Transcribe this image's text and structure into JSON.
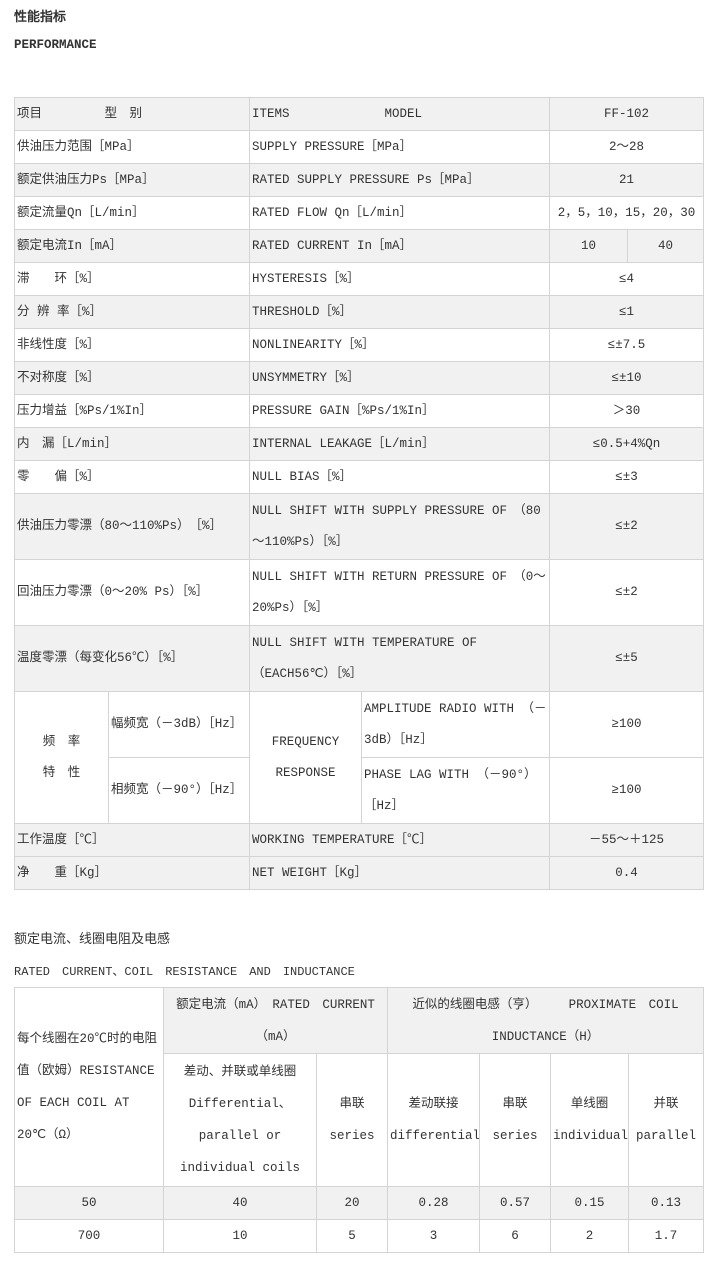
{
  "perf": {
    "title": "性能指标",
    "subtitle": "PERFORMANCE",
    "header": {
      "cn": "项目　　　　　型　别",
      "en_items": "ITEMS",
      "en_model": "MODEL",
      "model": "FF-102"
    },
    "rows": [
      {
        "cn": "供油压力范围［MPa］",
        "en": "SUPPLY PRESSURE［MPa］",
        "value": "2～28"
      },
      {
        "cn": "额定供油压力Ps［MPa］",
        "en": "RATED SUPPLY PRESSURE  Ps［MPa］",
        "value": "21"
      },
      {
        "cn": "额定流量Qn［L/min］",
        "en": "RATED  FLOW  Qn［L/min］",
        "value": "2，5，10，15，20，30"
      },
      {
        "cn": "额定电流In［mA］",
        "en": "RATED  CURRENT  In［mA］",
        "value_a": "10",
        "value_b": "40"
      },
      {
        "cn": "滞　　环［%］",
        "en": "HYSTERESIS［%］",
        "value": "≤4"
      },
      {
        "cn": "分 辨 率［%］",
        "en": "THRESHOLD［%］",
        "value": "≤1"
      },
      {
        "cn": "非线性度［%］",
        "en": "NONLINEARITY［%］",
        "value": "≤±7.5"
      },
      {
        "cn": "不对称度［%］",
        "en": "UNSYMMETRY［%］",
        "value": "≤±10"
      },
      {
        "cn": "压力增益［%Ps/1%In］",
        "en": "PRESSURE  GAIN［%Ps/1%In］",
        "value": "＞30"
      },
      {
        "cn": "内　漏［L/min］",
        "en": "INTERNAL  LEAKAGE［L/min］",
        "value": "≤0.5+4%Qn"
      },
      {
        "cn": "零　　偏［%］",
        "en": "NULL  BIAS［%］",
        "value": "≤±3"
      },
      {
        "cn": "供油压力零漂（80～110%Ps）　［%］",
        "en": "NULL SHIFT WITH SUPPLY PRESSURE OF　（80～110%Ps）［%］",
        "value": "≤±2"
      },
      {
        "cn": "回油压力零漂（0～20% Ps）［%］",
        "en": "NULL SHIFT WITH RETURN PRESSURE OF　（0～20%Ps）［%］",
        "value": "≤±2"
      },
      {
        "cn": "温度零漂（每变化56℃）［%］",
        "en": "NULL SHIFT WITH TEMPERATURE OF　（EACH56℃）［%］",
        "value": "≤±5"
      }
    ],
    "frequency": {
      "cn": "频　率　特　性",
      "en": "FREQUENCY RESPONSE",
      "sub": [
        {
          "cn": "幅频宽（－3dB）［Hz］",
          "en": "AMPLITUDE RADIO WITH （－3dB）［Hz］",
          "value": "≥100"
        },
        {
          "cn": "相频宽（－90°）［Hz］",
          "en": "PHASE LAG WITH （－90°）［Hz］",
          "value": "≥100"
        }
      ]
    },
    "tail": [
      {
        "cn": "工作温度［℃］",
        "en": "WORKING TEMPERATURE［℃］",
        "value": "－55～＋125"
      },
      {
        "cn": "净　　重［Kg］",
        "en": "NET WEIGHT［Kg］",
        "value": "0.4"
      }
    ]
  },
  "coil": {
    "title": "额定电流、线圈电阻及电感",
    "subtitle": "RATED　CURRENT、COIL　RESISTANCE　AND　INDUCTANCE",
    "h_resistance": "每个线圈在20℃时的电阻值（欧姆）RESISTANCE OF EACH COIL AT 20℃（Ω）",
    "h_current": "额定电流（mA）　RATED　CURRENT（mA）",
    "h_inductance": "近似的线圈电感（亨）　　　PROXIMATE　COIL　INDUCTANCE（H）",
    "sub": [
      "差动、并联或单线圈 Differential、parallel or individual coils",
      "串联 series",
      "差动联接 differential",
      "串联 series",
      "单线圈 individual",
      "并联 parallel"
    ],
    "rows": [
      [
        "50",
        "40",
        "20",
        "0.28",
        "0.57",
        "0.15",
        "0.13"
      ],
      [
        "700",
        "10",
        "5",
        "3",
        "6",
        "2",
        "1.7"
      ]
    ]
  }
}
